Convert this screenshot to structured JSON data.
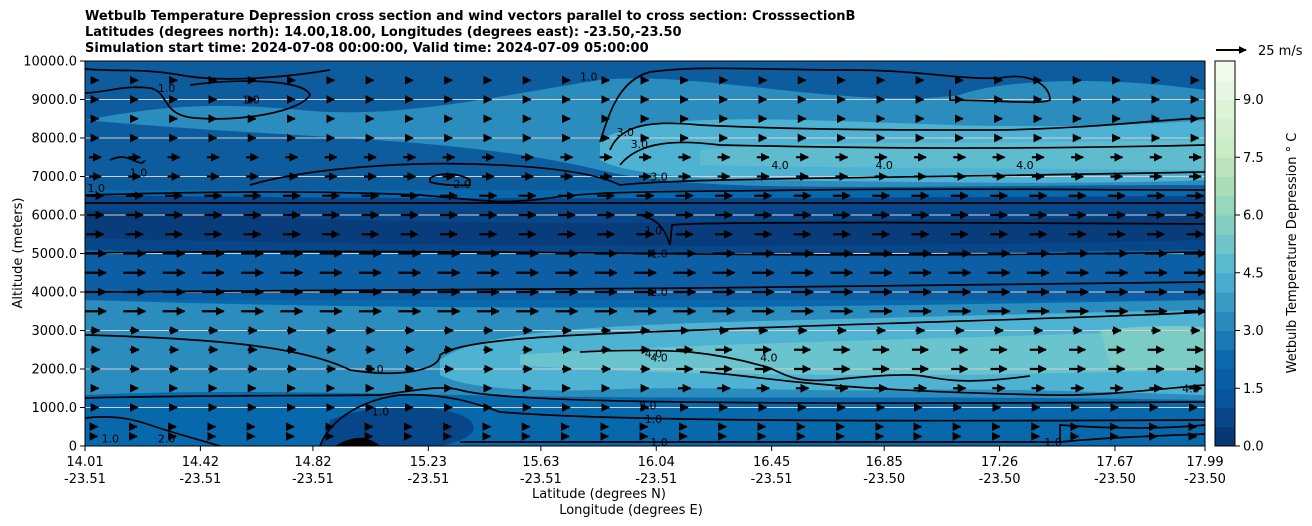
{
  "title_lines": [
    "Wetbulb Temperature Depression cross section and wind vectors parallel to cross section: CrosssectionB",
    "Latitudes (degrees north): 14.00,18.00, Longitudes (degrees east): -23.50,-23.50",
    "Simulation start time: 2024-07-08 00:00:00, Valid time: 2024-07-09 05:00:00"
  ],
  "chart_data": {
    "type": "contour",
    "ylabel": "Altitude (meters)",
    "xlabel_lat": "Latitude (degrees N)",
    "xlabel_lon": "Longitude (degrees E)",
    "ylim": [
      0,
      10000
    ],
    "y_ticks": [
      "0",
      "1000.0",
      "2000.0",
      "3000.0",
      "4000.0",
      "5000.0",
      "6000.0",
      "7000.0",
      "8000.0",
      "9000.0",
      "10000.0"
    ],
    "x_ticks": [
      {
        "lat": "14.01",
        "lon": "-23.51"
      },
      {
        "lat": "14.42",
        "lon": "-23.51"
      },
      {
        "lat": "14.82",
        "lon": "-23.51"
      },
      {
        "lat": "15.23",
        "lon": "-23.51"
      },
      {
        "lat": "15.63",
        "lon": "-23.51"
      },
      {
        "lat": "16.04",
        "lon": "-23.51"
      },
      {
        "lat": "16.45",
        "lon": "-23.51"
      },
      {
        "lat": "16.85",
        "lon": "-23.50"
      },
      {
        "lat": "17.26",
        "lon": "-23.50"
      },
      {
        "lat": "17.67",
        "lon": "-23.50"
      },
      {
        "lat": "17.99",
        "lon": "-23.50"
      }
    ],
    "colorbar": {
      "label": "Wetbulb Temperature Depression ° C",
      "ticks": [
        "0.0",
        "1.5",
        "3.0",
        "4.5",
        "6.0",
        "7.5",
        "9.0"
      ],
      "range": [
        0,
        10
      ],
      "colormap": [
        "#08306b",
        "#08519c",
        "#0868ac",
        "#2b8cbe",
        "#4eb3d3",
        "#7bccc4",
        "#a8ddb5",
        "#ccebc5",
        "#e0f3db",
        "#f7fcf0"
      ]
    },
    "quiver_key": "25 m/s",
    "contour_labels": [
      {
        "text": "1.0",
        "lat": 14.3,
        "alt": 9300
      },
      {
        "text": "1.0",
        "lat": 14.6,
        "alt": 9000
      },
      {
        "text": "1.0",
        "lat": 14.2,
        "alt": 7100
      },
      {
        "text": "1.0",
        "lat": 14.05,
        "alt": 6700
      },
      {
        "text": "1.0",
        "lat": 15.8,
        "alt": 9600
      },
      {
        "text": "2.0",
        "lat": 15.35,
        "alt": 6800
      },
      {
        "text": "3.0",
        "lat": 15.93,
        "alt": 8150
      },
      {
        "text": "3.0",
        "lat": 15.98,
        "alt": 7850
      },
      {
        "text": "3.0",
        "lat": 16.05,
        "alt": 7000
      },
      {
        "text": "4.0",
        "lat": 16.48,
        "alt": 7300
      },
      {
        "text": "4.0",
        "lat": 16.85,
        "alt": 7300
      },
      {
        "text": "4.0",
        "lat": 17.35,
        "alt": 7300
      },
      {
        "text": "1.0",
        "lat": 16.03,
        "alt": 5600
      },
      {
        "text": "1.0",
        "lat": 16.05,
        "alt": 5000
      },
      {
        "text": "2.0",
        "lat": 16.05,
        "alt": 4000
      },
      {
        "text": "4.0",
        "lat": 16.03,
        "alt": 2400
      },
      {
        "text": "4.0",
        "lat": 16.05,
        "alt": 2300
      },
      {
        "text": "4.0",
        "lat": 16.44,
        "alt": 2300
      },
      {
        "text": "3.0",
        "lat": 15.04,
        "alt": 2000
      },
      {
        "text": "4.0",
        "lat": 17.94,
        "alt": 1500
      },
      {
        "text": "2.0",
        "lat": 16.01,
        "alt": 1050
      },
      {
        "text": "1.0",
        "lat": 16.03,
        "alt": 700
      },
      {
        "text": "1.0",
        "lat": 15.06,
        "alt": 900
      },
      {
        "text": "1.0",
        "lat": 14.1,
        "alt": 200
      },
      {
        "text": "2.0",
        "lat": 14.3,
        "alt": 200
      },
      {
        "text": "1.0",
        "lat": 16.05,
        "alt": 100
      },
      {
        "text": "1.0",
        "lat": 17.45,
        "alt": 100
      }
    ],
    "wind_levels_m": [
      250,
      500,
      1000,
      1500,
      2000,
      2500,
      3000,
      3500,
      4000,
      4500,
      5000,
      5500,
      6000,
      6500,
      7000,
      7500,
      8000,
      8500,
      9000,
      9500
    ],
    "wind_direction": "parallel to cross section (pointing toward increasing latitude)"
  }
}
